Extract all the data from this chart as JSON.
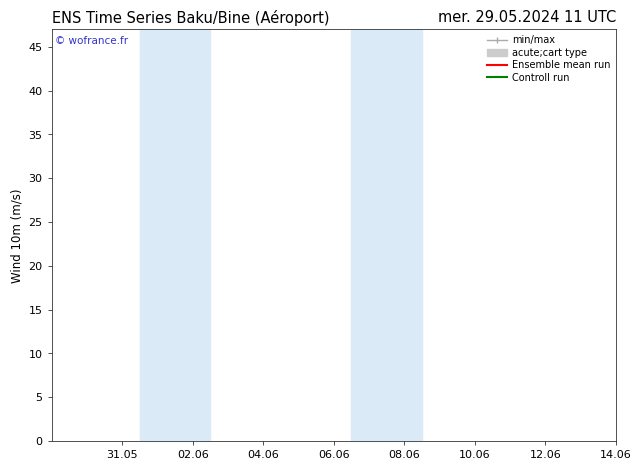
{
  "title_left": "ENS Time Series Baku/Bine (Aéroport)",
  "title_right": "mer. 29.05.2024 11 UTC",
  "ylabel": "Wind 10m (m/s)",
  "watermark": "© wofrance.fr",
  "ylim": [
    0,
    47
  ],
  "yticks": [
    0,
    5,
    10,
    15,
    20,
    25,
    30,
    35,
    40,
    45
  ],
  "xtick_labels": [
    "31.05",
    "02.06",
    "04.06",
    "06.06",
    "08.06",
    "10.06",
    "12.06",
    "14.06"
  ],
  "xtick_positions": [
    2,
    4,
    6,
    8,
    10,
    12,
    14,
    16
  ],
  "x_min": 0,
  "x_max": 16,
  "shaded_bands": [
    {
      "x_start": 2.5,
      "x_end": 4.5
    },
    {
      "x_start": 8.5,
      "x_end": 10.5
    }
  ],
  "shade_color": "#daeaf7",
  "background_color": "#ffffff",
  "grid_color": "#cccccc",
  "title_fontsize": 10.5,
  "axis_fontsize": 8.5,
  "tick_fontsize": 8,
  "watermark_color": "#3333cc",
  "legend_minmax_color": "#aaaaaa",
  "legend_acute_color": "#cccccc",
  "legend_ens_color": "#ff0000",
  "legend_ctrl_color": "#008000"
}
